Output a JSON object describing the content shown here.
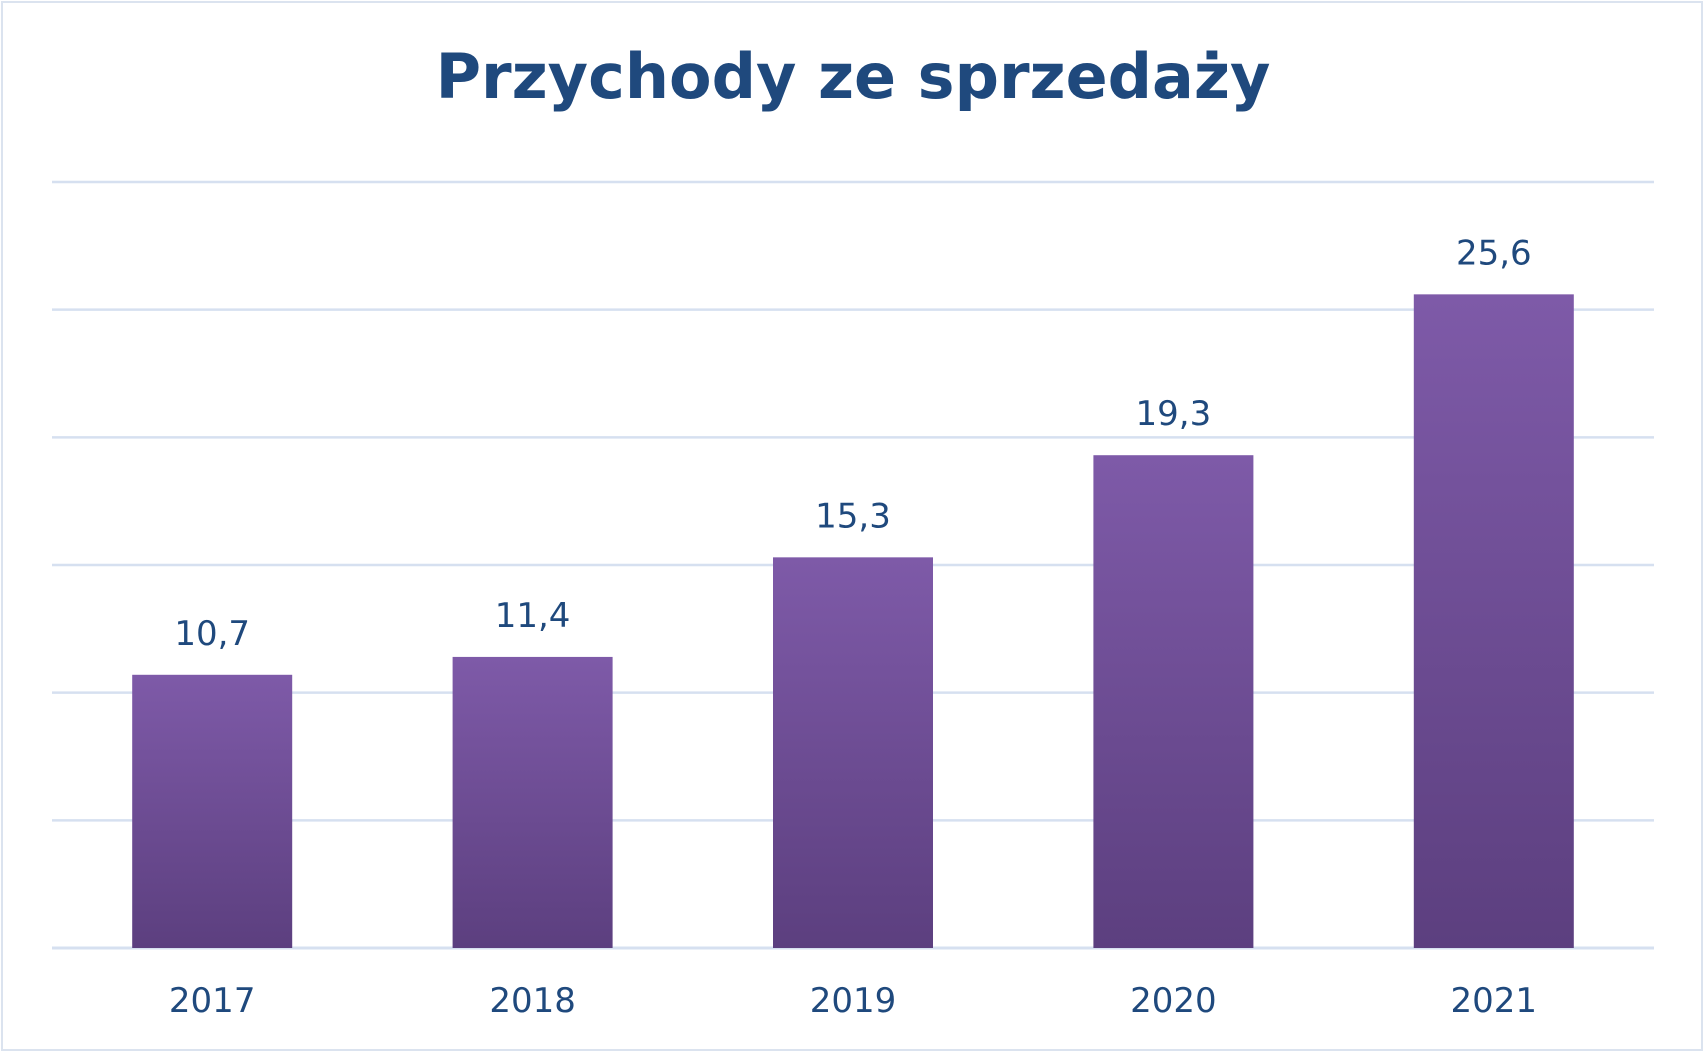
{
  "chart_data": {
    "type": "bar",
    "title": "Przychody ze sprzedaży",
    "categories": [
      "2017",
      "2018",
      "2019",
      "2020",
      "2021"
    ],
    "values": [
      10.7,
      11.4,
      15.3,
      19.3,
      25.6
    ],
    "value_labels": [
      "10,7",
      "11,4",
      "15,3",
      "19,3",
      "25,6"
    ],
    "ylim": [
      0,
      30
    ],
    "grid": true,
    "legend": "none",
    "colors": {
      "bar_top": "#7e5aa8",
      "bar_bottom": "#5c3f7f",
      "gridline": "#d6e0f0",
      "text": "#1f497d"
    }
  }
}
